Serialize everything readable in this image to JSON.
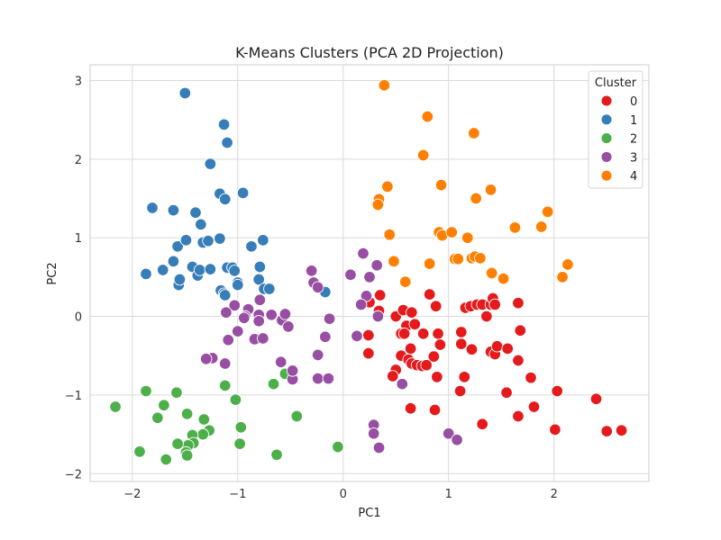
{
  "chart_data": {
    "type": "scatter",
    "title": "K-Means Clusters (PCA 2D Projection)",
    "xlabel": "PC1",
    "ylabel": "PC2",
    "xlim": [
      -2.4,
      2.9
    ],
    "ylim": [
      -2.1,
      3.2
    ],
    "x_ticks": [
      -2,
      -1,
      0,
      1,
      2
    ],
    "y_ticks": [
      -2,
      -1,
      0,
      1,
      2,
      3
    ],
    "x_tick_labels": [
      "−2",
      "−1",
      "0",
      "1",
      "2"
    ],
    "y_tick_labels": [
      "−2",
      "−1",
      "0",
      "1",
      "2",
      "3"
    ],
    "grid": true,
    "legend_placement": "top-right",
    "legend_title": "Cluster",
    "series": [
      {
        "name": "0",
        "color": "#e41a1c",
        "points": [
          [
            0.35,
            0.27
          ],
          [
            0.25,
            0.18
          ],
          [
            0.34,
            0.07
          ],
          [
            0.5,
            0.0
          ],
          [
            0.57,
            0.08
          ],
          [
            0.65,
            0.05
          ],
          [
            0.6,
            -0.12
          ],
          [
            0.68,
            -0.1
          ],
          [
            0.55,
            -0.22
          ],
          [
            0.58,
            -0.22
          ],
          [
            0.76,
            -0.22
          ],
          [
            0.82,
            0.28
          ],
          [
            0.88,
            0.13
          ],
          [
            0.9,
            -0.22
          ],
          [
            1.16,
            0.11
          ],
          [
            1.21,
            0.13
          ],
          [
            1.27,
            0.15
          ],
          [
            1.32,
            0.15
          ],
          [
            1.36,
            0.0
          ],
          [
            1.4,
            0.15
          ],
          [
            1.42,
            0.23
          ],
          [
            1.44,
            0.15
          ],
          [
            1.66,
            0.17
          ],
          [
            1.68,
            -0.18
          ],
          [
            1.12,
            -0.2
          ],
          [
            1.12,
            -0.35
          ],
          [
            0.92,
            -0.36
          ],
          [
            0.64,
            -0.41
          ],
          [
            0.55,
            -0.5
          ],
          [
            0.62,
            -0.55
          ],
          [
            0.65,
            -0.6
          ],
          [
            0.7,
            -0.62
          ],
          [
            0.75,
            -0.63
          ],
          [
            0.79,
            -0.62
          ],
          [
            0.86,
            -0.51
          ],
          [
            0.89,
            -0.77
          ],
          [
            0.5,
            -0.68
          ],
          [
            0.47,
            -0.76
          ],
          [
            0.24,
            -0.24
          ],
          [
            0.24,
            -0.47
          ],
          [
            1.22,
            -0.42
          ],
          [
            1.4,
            -0.45
          ],
          [
            1.44,
            -0.48
          ],
          [
            1.46,
            -0.38
          ],
          [
            1.56,
            -0.41
          ],
          [
            1.66,
            -0.56
          ],
          [
            1.78,
            -0.78
          ],
          [
            1.15,
            -0.77
          ],
          [
            1.11,
            -0.95
          ],
          [
            1.55,
            -0.97
          ],
          [
            2.03,
            -0.95
          ],
          [
            1.81,
            -1.15
          ],
          [
            1.66,
            -1.27
          ],
          [
            1.32,
            -1.37
          ],
          [
            2.01,
            -1.44
          ],
          [
            2.4,
            -1.05
          ],
          [
            2.5,
            -1.46
          ],
          [
            2.64,
            -1.45
          ],
          [
            0.64,
            -1.17
          ],
          [
            0.87,
            -1.19
          ]
        ]
      },
      {
        "name": "1",
        "color": "#377eb8",
        "points": [
          [
            -1.5,
            2.84
          ],
          [
            -1.13,
            2.44
          ],
          [
            -1.1,
            2.21
          ],
          [
            -1.26,
            1.94
          ],
          [
            -1.17,
            1.56
          ],
          [
            -1.12,
            1.49
          ],
          [
            -0.95,
            1.57
          ],
          [
            -1.81,
            1.38
          ],
          [
            -1.61,
            1.35
          ],
          [
            -1.4,
            1.32
          ],
          [
            -1.35,
            1.17
          ],
          [
            -1.57,
            0.89
          ],
          [
            -1.49,
            0.97
          ],
          [
            -1.33,
            0.94
          ],
          [
            -1.28,
            0.96
          ],
          [
            -1.17,
            0.99
          ],
          [
            -0.87,
            0.89
          ],
          [
            -0.76,
            0.97
          ],
          [
            -1.61,
            0.7
          ],
          [
            -1.71,
            0.59
          ],
          [
            -1.87,
            0.54
          ],
          [
            -1.56,
            0.4
          ],
          [
            -1.55,
            0.47
          ],
          [
            -1.43,
            0.63
          ],
          [
            -1.38,
            0.52
          ],
          [
            -1.36,
            0.59
          ],
          [
            -1.26,
            0.6
          ],
          [
            -1.1,
            0.62
          ],
          [
            -1.05,
            0.62
          ],
          [
            -1.03,
            0.58
          ],
          [
            -1.0,
            0.43
          ],
          [
            -1.0,
            0.4
          ],
          [
            -0.79,
            0.63
          ],
          [
            -0.8,
            0.47
          ],
          [
            -0.75,
            0.35
          ],
          [
            -0.7,
            0.35
          ],
          [
            -1.16,
            0.33
          ],
          [
            -1.13,
            0.29
          ],
          [
            -1.12,
            0.27
          ],
          [
            -0.17,
            0.31
          ]
        ]
      },
      {
        "name": "2",
        "color": "#4daf4a",
        "points": [
          [
            -2.16,
            -1.15
          ],
          [
            -1.87,
            -0.95
          ],
          [
            -1.7,
            -1.13
          ],
          [
            -1.58,
            -0.97
          ],
          [
            -1.76,
            -1.29
          ],
          [
            -1.48,
            -1.24
          ],
          [
            -1.32,
            -1.31
          ],
          [
            -1.12,
            -0.88
          ],
          [
            -1.02,
            -1.06
          ],
          [
            -0.97,
            -1.41
          ],
          [
            -0.66,
            -0.86
          ],
          [
            -0.55,
            -0.73
          ],
          [
            -0.44,
            -1.27
          ],
          [
            -1.27,
            -1.45
          ],
          [
            -1.33,
            -1.5
          ],
          [
            -1.43,
            -1.51
          ],
          [
            -1.42,
            -1.61
          ],
          [
            -1.47,
            -1.64
          ],
          [
            -1.49,
            -1.73
          ],
          [
            -1.48,
            -1.77
          ],
          [
            -1.57,
            -1.62
          ],
          [
            -1.93,
            -1.72
          ],
          [
            -1.68,
            -1.82
          ],
          [
            -0.98,
            -1.62
          ],
          [
            -0.63,
            -1.76
          ],
          [
            -0.05,
            -1.66
          ]
        ]
      },
      {
        "name": "3",
        "color": "#984ea3",
        "points": [
          [
            0.19,
            0.8
          ],
          [
            0.32,
            0.65
          ],
          [
            0.07,
            0.53
          ],
          [
            0.25,
            0.5
          ],
          [
            -0.3,
            0.58
          ],
          [
            -0.28,
            0.43
          ],
          [
            -0.24,
            0.37
          ],
          [
            -0.79,
            0.21
          ],
          [
            0.22,
            0.26
          ],
          [
            0.17,
            0.15
          ],
          [
            0.33,
            0.0
          ],
          [
            -1.03,
            0.14
          ],
          [
            -0.9,
            0.09
          ],
          [
            -1.11,
            0.05
          ],
          [
            -0.93,
            0.0
          ],
          [
            -0.94,
            -0.02
          ],
          [
            -0.8,
            0.02
          ],
          [
            -0.8,
            -0.06
          ],
          [
            -0.68,
            0.02
          ],
          [
            -0.58,
            -0.05
          ],
          [
            -0.55,
            0.03
          ],
          [
            -0.52,
            -0.13
          ],
          [
            -0.13,
            -0.03
          ],
          [
            -1.0,
            -0.19
          ],
          [
            -1.09,
            -0.3
          ],
          [
            -0.84,
            -0.29
          ],
          [
            -0.76,
            -0.28
          ],
          [
            -0.17,
            -0.26
          ],
          [
            0.13,
            -0.25
          ],
          [
            -1.24,
            -0.53
          ],
          [
            -1.3,
            -0.54
          ],
          [
            -1.12,
            -0.6
          ],
          [
            -0.59,
            -0.58
          ],
          [
            -0.48,
            -0.8
          ],
          [
            -0.48,
            -0.69
          ],
          [
            -0.24,
            -0.49
          ],
          [
            -0.24,
            -0.79
          ],
          [
            -0.14,
            -0.79
          ],
          [
            0.56,
            -0.86
          ],
          [
            0.29,
            -1.38
          ],
          [
            0.29,
            -1.49
          ],
          [
            0.34,
            -1.67
          ],
          [
            1.0,
            -1.49
          ],
          [
            1.08,
            -1.57
          ]
        ]
      },
      {
        "name": "4",
        "color": "#ff7f00",
        "points": [
          [
            0.39,
            2.94
          ],
          [
            0.8,
            2.54
          ],
          [
            1.24,
            2.33
          ],
          [
            0.76,
            2.05
          ],
          [
            0.93,
            1.67
          ],
          [
            1.4,
            1.61
          ],
          [
            0.42,
            1.65
          ],
          [
            0.34,
            1.49
          ],
          [
            0.33,
            1.42
          ],
          [
            1.26,
            1.5
          ],
          [
            1.94,
            1.33
          ],
          [
            0.44,
            1.04
          ],
          [
            1.63,
            1.13
          ],
          [
            1.88,
            1.14
          ],
          [
            0.91,
            1.07
          ],
          [
            0.94,
            1.03
          ],
          [
            1.03,
            1.07
          ],
          [
            1.18,
            1.0
          ],
          [
            1.06,
            0.73
          ],
          [
            1.09,
            0.73
          ],
          [
            1.22,
            0.74
          ],
          [
            1.25,
            0.76
          ],
          [
            1.3,
            0.74
          ],
          [
            0.82,
            0.67
          ],
          [
            0.48,
            0.7
          ],
          [
            0.59,
            0.44
          ],
          [
            1.41,
            0.55
          ],
          [
            1.52,
            0.48
          ],
          [
            2.08,
            0.5
          ],
          [
            2.13,
            0.66
          ]
        ]
      }
    ]
  }
}
